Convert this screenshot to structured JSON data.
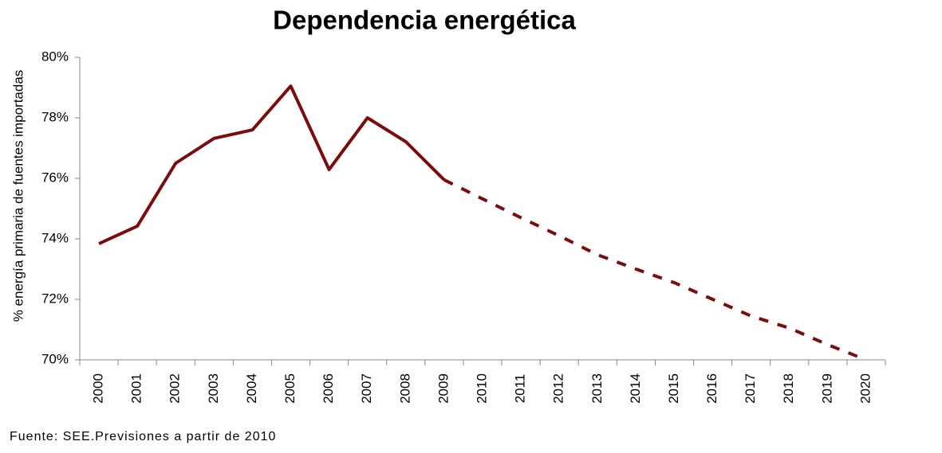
{
  "chart_data": {
    "type": "line",
    "title": "Dependencia energética",
    "ylabel": "% energía primaria de fuentes importadas",
    "source": "Fuente: SEE.Previsiones a partir de 2010",
    "categories": [
      "2000",
      "2001",
      "2002",
      "2003",
      "2004",
      "2005",
      "2006",
      "2007",
      "2008",
      "2009",
      "2010",
      "2011",
      "2012",
      "2013",
      "2014",
      "2015",
      "2016",
      "2017",
      "2018",
      "2019",
      "2020"
    ],
    "series": [
      {
        "color": "#7b0c0c",
        "style": "solid",
        "values": [
          73.84,
          74.42,
          76.5,
          77.32,
          77.6,
          79.05,
          76.29,
          78.0,
          77.21,
          75.95,
          null,
          null,
          null,
          null,
          null,
          null,
          null,
          null,
          null,
          null,
          null
        ]
      },
      {
        "color": "#7b0c0c",
        "style": "dashed",
        "values": [
          null,
          null,
          null,
          null,
          null,
          null,
          null,
          null,
          null,
          75.95,
          75.32,
          74.7,
          74.1,
          73.47,
          73.0,
          72.55,
          72.0,
          71.45,
          71.05,
          70.5,
          70.0
        ]
      }
    ],
    "ylim": [
      70,
      80
    ],
    "yticks": [
      {
        "value": 70,
        "label": "70%"
      },
      {
        "value": 72,
        "label": "72%"
      },
      {
        "value": 74,
        "label": "74%"
      },
      {
        "value": 76,
        "label": "76%"
      },
      {
        "value": 78,
        "label": "78%"
      },
      {
        "value": 80,
        "label": "80%"
      }
    ],
    "grid": false
  }
}
